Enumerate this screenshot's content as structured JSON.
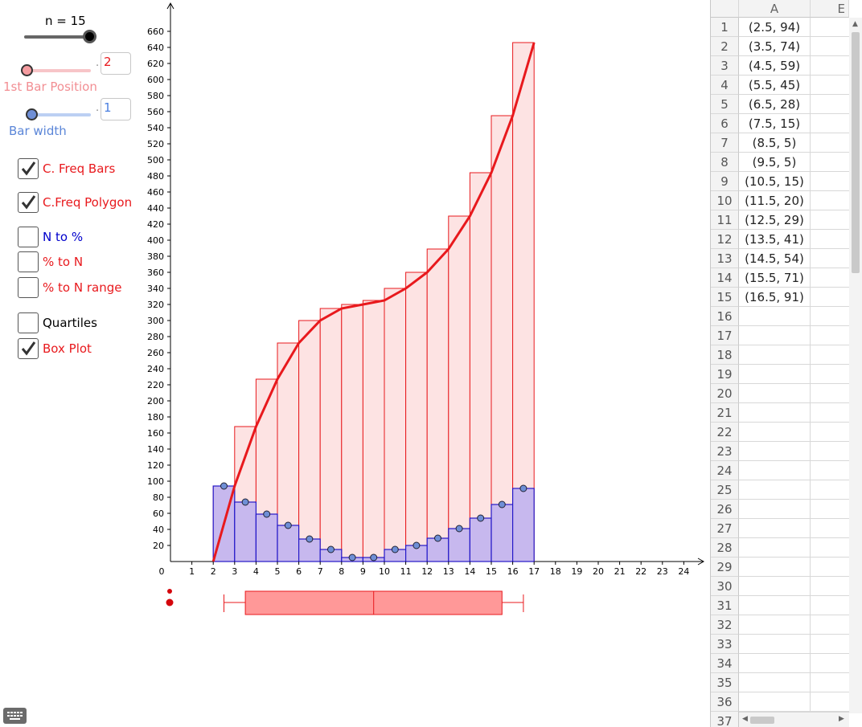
{
  "controls": {
    "n_label": "n = 15",
    "n_value": 15,
    "n_min": 1,
    "n_max": 15,
    "first_bar_label": "1st Bar Position",
    "first_bar_value": "2",
    "first_bar_slider_fraction": 0.0,
    "bar_width_label": "Bar width",
    "bar_width_value": "1",
    "bar_width_slider_fraction": 0.0,
    "dot_sep": "."
  },
  "checkboxes": [
    {
      "label": "C. Freq Bars",
      "checked": true,
      "color": "#e8191d"
    },
    {
      "label": "C.Freq Polygon",
      "checked": true,
      "color": "#e8191d"
    },
    {
      "label": "N to %",
      "checked": false,
      "color": "#0000cc"
    },
    {
      "label": "% to N",
      "checked": false,
      "color": "#e8191d"
    },
    {
      "label": "% to N range",
      "checked": false,
      "color": "#e8191d"
    },
    {
      "label": "Quartiles",
      "checked": false,
      "color": "#000000"
    },
    {
      "label": "Box Plot",
      "checked": true,
      "color": "#e8191d"
    }
  ],
  "chart_data": {
    "type": "bar",
    "bar_edges": [
      2,
      3,
      4,
      5,
      6,
      7,
      8,
      9,
      10,
      11,
      12,
      13,
      14,
      15,
      16,
      17
    ],
    "frequency_values": [
      94,
      74,
      59,
      45,
      28,
      15,
      5,
      5,
      15,
      20,
      29,
      41,
      54,
      71,
      91
    ],
    "cumulative_values": [
      94,
      168,
      227,
      272,
      300,
      315,
      320,
      325,
      340,
      360,
      389,
      430,
      484,
      555,
      646
    ],
    "polygon_points": [
      [
        2,
        0
      ],
      [
        3,
        94
      ],
      [
        4,
        168
      ],
      [
        5,
        227
      ],
      [
        6,
        272
      ],
      [
        7,
        300
      ],
      [
        8,
        315
      ],
      [
        9,
        320
      ],
      [
        10,
        325
      ],
      [
        11,
        340
      ],
      [
        12,
        360
      ],
      [
        13,
        389
      ],
      [
        14,
        430
      ],
      [
        15,
        484
      ],
      [
        16,
        555
      ],
      [
        17,
        646
      ]
    ],
    "xlim": [
      0,
      24
    ],
    "ylim": [
      0,
      660
    ],
    "x_ticks": [
      0,
      1,
      2,
      3,
      4,
      5,
      6,
      7,
      8,
      9,
      10,
      11,
      12,
      13,
      14,
      15,
      16,
      17,
      18,
      19,
      20,
      21,
      22,
      23,
      24
    ],
    "y_ticks": [
      20,
      40,
      60,
      80,
      100,
      120,
      140,
      160,
      180,
      200,
      220,
      240,
      260,
      280,
      300,
      320,
      340,
      360,
      380,
      400,
      420,
      440,
      460,
      480,
      500,
      520,
      540,
      560,
      580,
      600,
      620,
      640,
      660
    ],
    "box_plot": {
      "min": 2.5,
      "q1": 3.5,
      "median": 9.5,
      "q3": 15.5,
      "max": 16.5
    },
    "colors": {
      "freq_fill": "#c7b8ee",
      "freq_stroke": "#2418c8",
      "cum_fill": "#fde3e3",
      "cum_stroke": "#e8191d",
      "point": "#6f8fd6",
      "box_fill": "#ff9898"
    }
  },
  "spreadsheet": {
    "columns": [
      "A",
      "E"
    ],
    "rows": [
      {
        "num": "1",
        "a": "(2.5, 94)"
      },
      {
        "num": "2",
        "a": "(3.5, 74)"
      },
      {
        "num": "3",
        "a": "(4.5, 59)"
      },
      {
        "num": "4",
        "a": "(5.5, 45)"
      },
      {
        "num": "5",
        "a": "(6.5, 28)"
      },
      {
        "num": "6",
        "a": "(7.5, 15)"
      },
      {
        "num": "7",
        "a": "(8.5, 5)"
      },
      {
        "num": "8",
        "a": "(9.5, 5)"
      },
      {
        "num": "9",
        "a": "(10.5, 15)"
      },
      {
        "num": "10",
        "a": "(11.5, 20)"
      },
      {
        "num": "11",
        "a": "(12.5, 29)"
      },
      {
        "num": "12",
        "a": "(13.5, 41)"
      },
      {
        "num": "13",
        "a": "(14.5, 54)"
      },
      {
        "num": "14",
        "a": "(15.5, 71)"
      },
      {
        "num": "15",
        "a": "(16.5, 91)"
      },
      {
        "num": "16",
        "a": ""
      },
      {
        "num": "17",
        "a": ""
      },
      {
        "num": "18",
        "a": ""
      },
      {
        "num": "19",
        "a": ""
      },
      {
        "num": "20",
        "a": ""
      },
      {
        "num": "21",
        "a": ""
      },
      {
        "num": "22",
        "a": ""
      },
      {
        "num": "23",
        "a": ""
      },
      {
        "num": "24",
        "a": ""
      },
      {
        "num": "25",
        "a": ""
      },
      {
        "num": "26",
        "a": ""
      },
      {
        "num": "27",
        "a": ""
      },
      {
        "num": "28",
        "a": ""
      },
      {
        "num": "29",
        "a": ""
      },
      {
        "num": "30",
        "a": ""
      },
      {
        "num": "31",
        "a": ""
      },
      {
        "num": "32",
        "a": ""
      },
      {
        "num": "33",
        "a": ""
      },
      {
        "num": "34",
        "a": ""
      },
      {
        "num": "35",
        "a": ""
      },
      {
        "num": "36",
        "a": ""
      },
      {
        "num": "37",
        "a": ""
      }
    ]
  },
  "icons": {
    "keyboard": "keyboard-icon"
  }
}
